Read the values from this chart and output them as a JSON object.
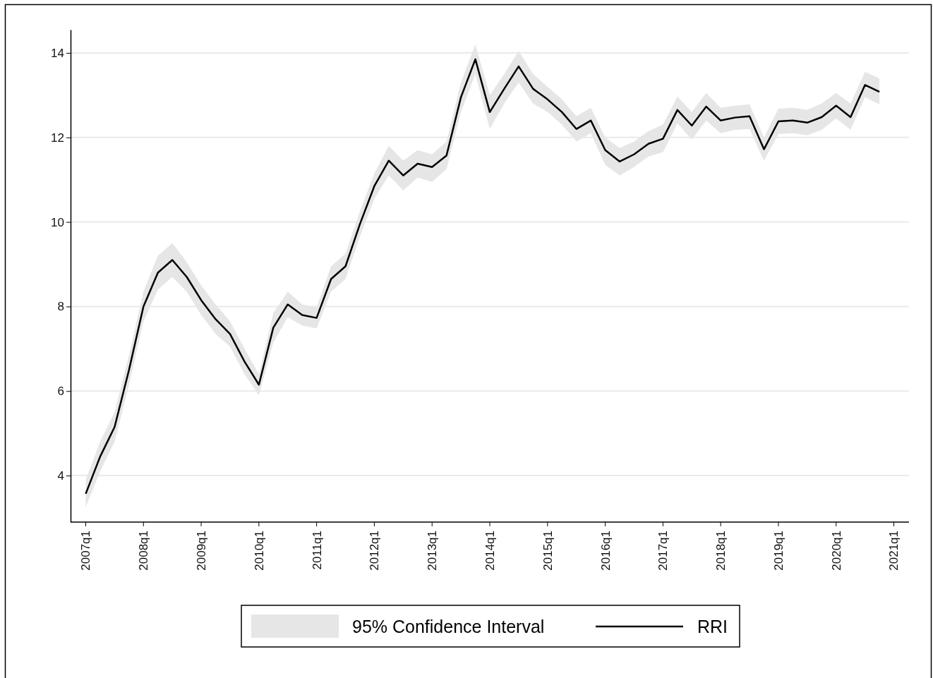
{
  "chart_data": {
    "type": "line",
    "categories": [
      "2007q1",
      null,
      null,
      null,
      "2008q1",
      null,
      null,
      null,
      "2009q1",
      null,
      null,
      null,
      "2010q1",
      null,
      null,
      null,
      "2011q1",
      null,
      null,
      null,
      "2012q1",
      null,
      null,
      null,
      "2013q1",
      null,
      null,
      null,
      "2014q1",
      null,
      null,
      null,
      "2015q1",
      null,
      null,
      null,
      "2016q1",
      null,
      null,
      null,
      "2017q1",
      null,
      null,
      null,
      "2018q1",
      null,
      null,
      null,
      "2019q1",
      null,
      null,
      null,
      "2020q1",
      null,
      null,
      null,
      "2021q1"
    ],
    "series": [
      {
        "name": "RRI",
        "color": "#000000",
        "values": [
          3.57,
          4.45,
          5.15,
          6.5,
          8.0,
          8.8,
          9.1,
          8.7,
          8.15,
          7.7,
          7.35,
          6.7,
          6.15,
          7.5,
          8.05,
          7.8,
          7.73,
          8.65,
          8.95,
          9.95,
          10.85,
          11.45,
          11.1,
          11.38,
          11.3,
          11.57,
          12.95,
          13.85,
          12.6,
          13.15,
          13.68,
          13.15,
          12.9,
          12.6,
          12.2,
          12.4,
          11.7,
          11.43,
          11.6,
          11.85,
          11.97,
          12.65,
          12.28,
          12.73,
          12.4,
          12.47,
          12.5,
          11.72,
          12.38,
          12.4,
          12.35,
          12.48,
          12.75,
          12.48,
          13.24,
          13.08,
          null
        ],
        "upper": [
          3.9,
          4.8,
          5.5,
          6.85,
          8.35,
          9.2,
          9.5,
          9.05,
          8.5,
          8.05,
          7.65,
          7.0,
          6.4,
          7.85,
          8.35,
          8.05,
          7.98,
          8.95,
          9.25,
          10.25,
          11.15,
          11.8,
          11.45,
          11.7,
          11.6,
          11.9,
          13.3,
          14.2,
          13.0,
          13.5,
          14.05,
          13.5,
          13.2,
          12.9,
          12.5,
          12.7,
          12.0,
          11.75,
          11.9,
          12.15,
          12.3,
          12.97,
          12.6,
          13.05,
          12.7,
          12.75,
          12.78,
          12.0,
          12.68,
          12.7,
          12.65,
          12.8,
          13.05,
          12.8,
          13.55,
          13.4,
          null
        ],
        "lower": [
          3.25,
          4.1,
          4.8,
          6.15,
          7.65,
          8.4,
          8.7,
          8.35,
          7.8,
          7.35,
          7.05,
          6.4,
          5.9,
          7.15,
          7.75,
          7.55,
          7.48,
          8.35,
          8.65,
          9.65,
          10.55,
          11.1,
          10.75,
          11.05,
          10.95,
          11.25,
          12.6,
          13.5,
          12.2,
          12.8,
          13.3,
          12.8,
          12.6,
          12.3,
          11.9,
          12.1,
          11.35,
          11.1,
          11.3,
          11.55,
          11.65,
          12.33,
          11.95,
          12.4,
          12.1,
          12.18,
          12.2,
          11.45,
          12.08,
          12.1,
          12.05,
          12.18,
          12.45,
          12.18,
          12.95,
          12.78,
          null
        ]
      }
    ],
    "annotations": [
      "95% Confidence Interval"
    ],
    "ylim": [
      2.9,
      14.55
    ],
    "yticks": [
      4,
      6,
      8,
      10,
      12,
      14
    ],
    "grid": "y",
    "legend": "bottom",
    "line_style": "solid",
    "marker": "none"
  }
}
